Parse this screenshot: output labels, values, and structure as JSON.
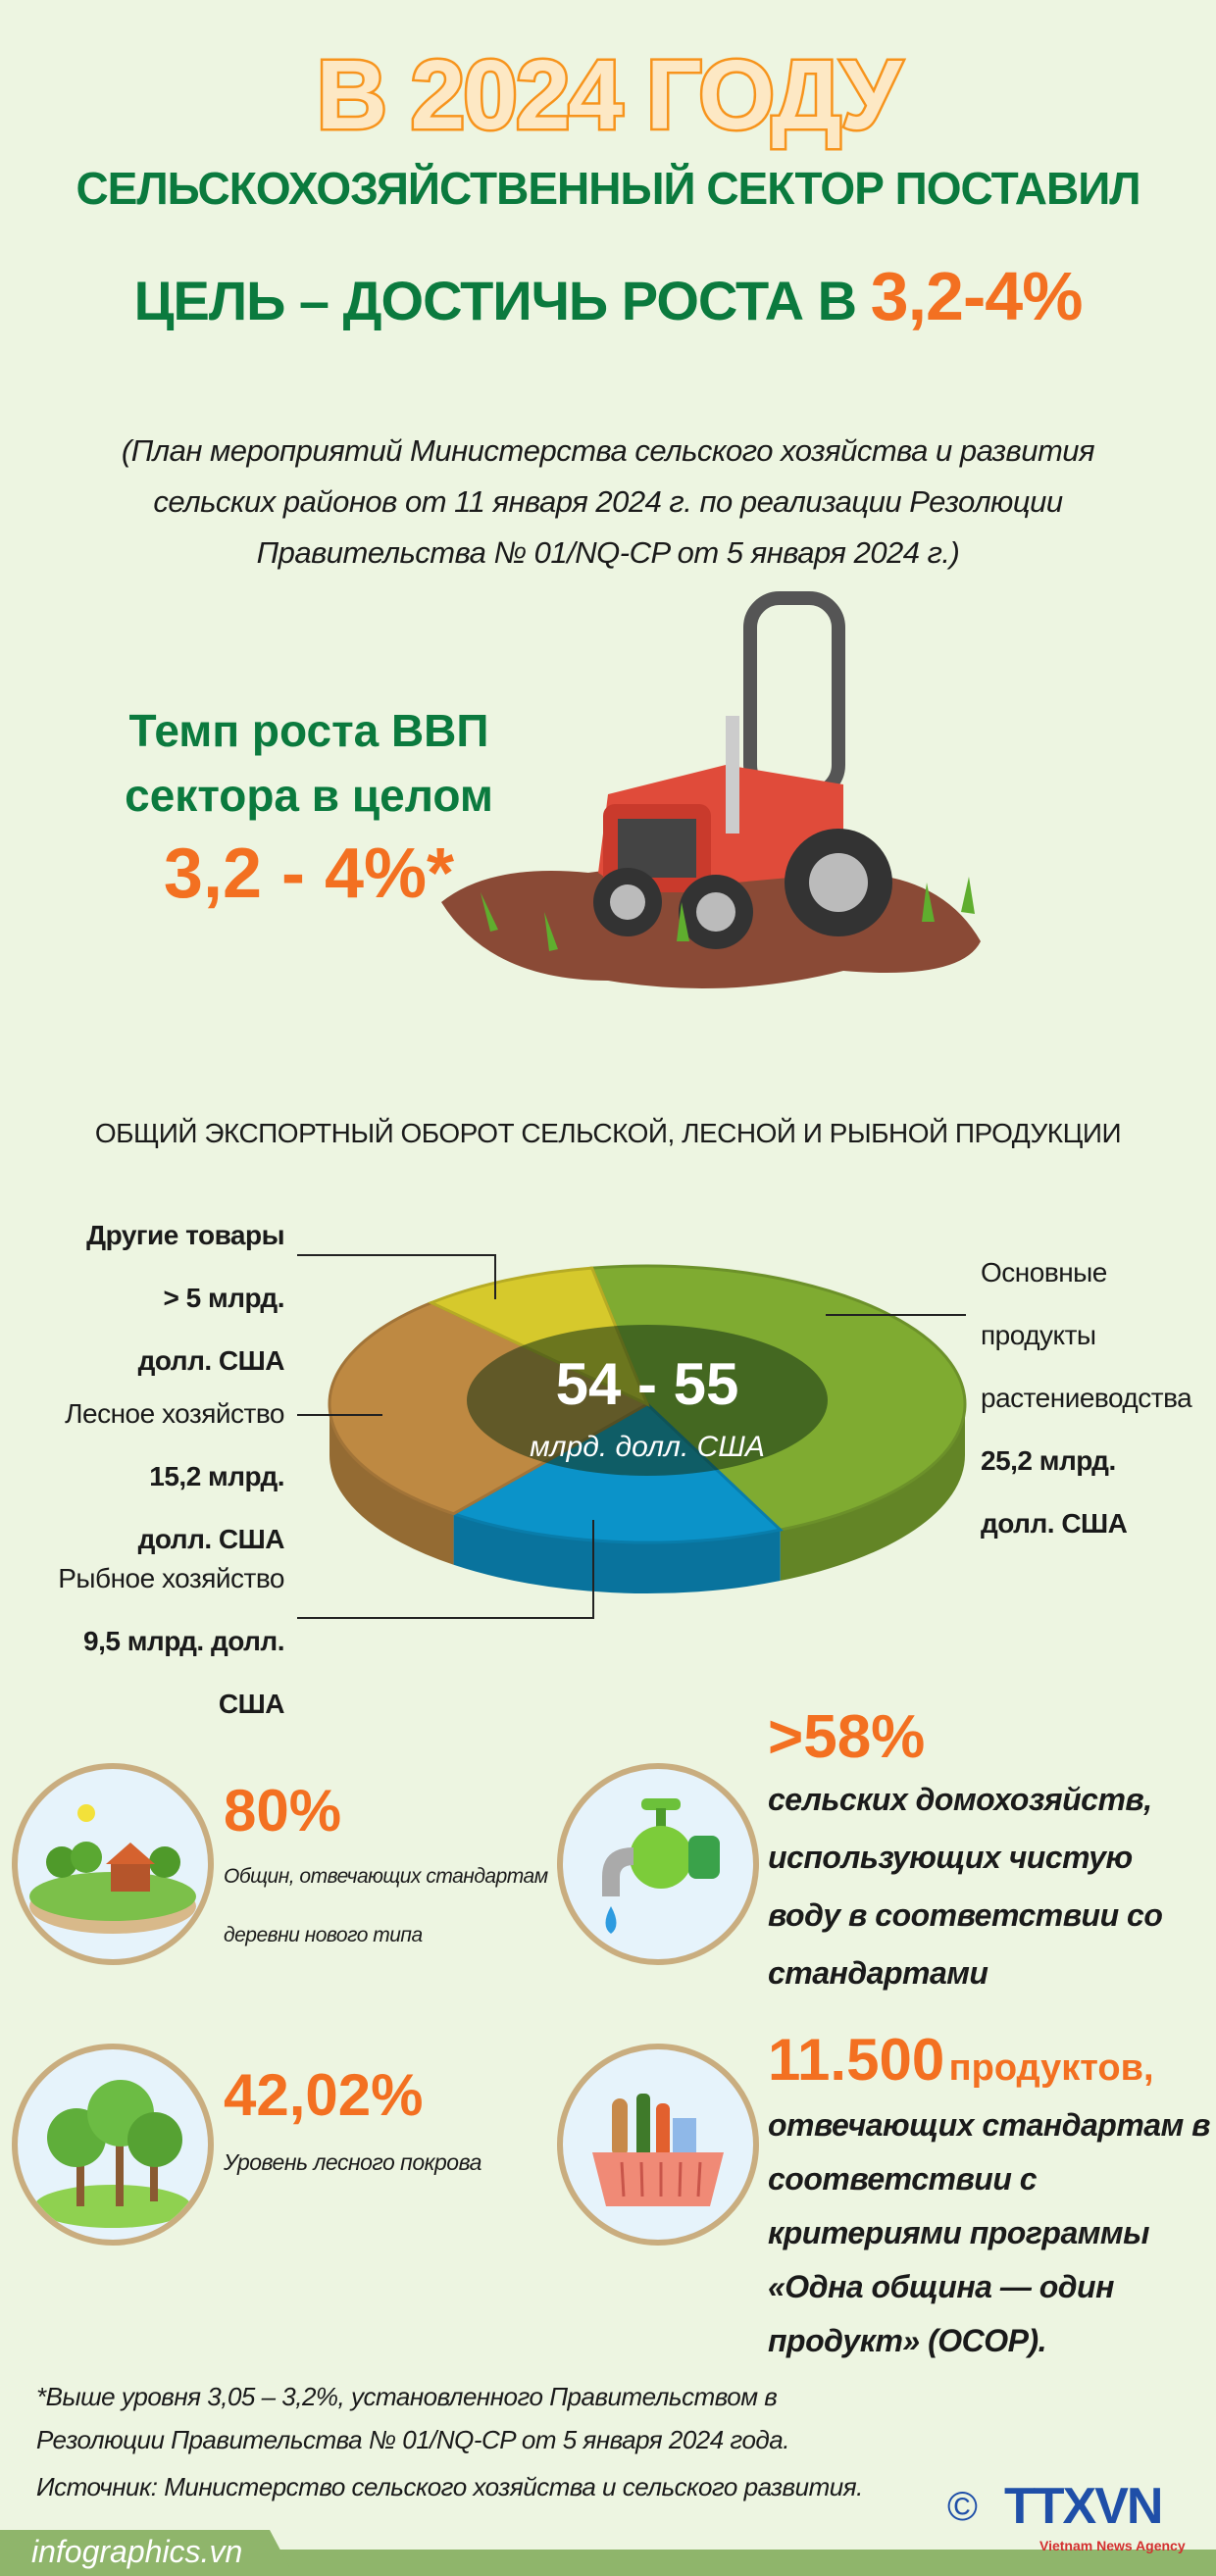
{
  "header": {
    "line1": "В 2024 ГОДУ",
    "line2": "СЕЛЬСКОХОЗЯЙСТВЕННЫЙ СЕКТОР ПОСТАВИЛ",
    "line3_text": "ЦЕЛЬ – ДОСТИЧЬ РОСТА В",
    "line3_highlight": "3,2-4%",
    "subtitle": [
      "(План мероприятий Министерства сельского хозяйства и развития",
      "сельских районов  от 11 января 2024 г. по реализации Резолюции",
      "Правительства № 01/NQ-CP от 5 января 2024 г.)"
    ]
  },
  "gdp": {
    "label_lines": [
      "Темп роста ВВП",
      "сектора в целом"
    ],
    "value": "3,2 - 4%*"
  },
  "chart_data": {
    "type": "pie",
    "title": "ОБЩИЙ ЭКСПОРТНЫЙ ОБОРОТ СЕЛЬСКОЙ, ЛЕСНОЙ И РЫБНОЙ ПРОДУКЦИИ",
    "center_value": "54 - 55",
    "center_unit": "млрд. долл. США",
    "slices": [
      {
        "name": "Основные продукты растениеводства",
        "value": 25.2,
        "color": "#7fab31",
        "label_lines": [
          "Основные",
          "продукты",
          "растениеводства"
        ],
        "value_lines": [
          "25,2 млрд.",
          "долл. США"
        ]
      },
      {
        "name": "Рыбное хозяйство",
        "value": 9.5,
        "color": "#0b93c9",
        "label_lines": [
          "Рыбное хозяйство"
        ],
        "value_lines": [
          "9,5 млрд. долл.",
          "США"
        ]
      },
      {
        "name": "Лесное хозяйство",
        "value": 15.2,
        "color": "#be8942",
        "label_lines": [
          "Лесное хозяйство"
        ],
        "value_lines": [
          "15,2 млрд.",
          "долл. США"
        ]
      },
      {
        "name": "Другие товары",
        "value": 5,
        "color": "#d6c92c",
        "label_lines": [
          "Другие товары"
        ],
        "value_lines": [
          "> 5 млрд.",
          "долл. США"
        ]
      }
    ]
  },
  "stats": {
    "villages": {
      "value": "80%",
      "caption_lines": [
        "Общин, отвечающих стандартам",
        "деревни нового типа"
      ]
    },
    "water": {
      "value": ">58%",
      "lines": [
        "сельских домохозяйств,",
        "использующих чистую",
        "воду в соответствии со",
        "стандартами"
      ]
    },
    "forest": {
      "value": "42,02%",
      "caption": "Уровень лесного покрова"
    },
    "ocop": {
      "value": "11.500",
      "unit": "продуктов,",
      "lines": [
        "отвечающих стандартам в",
        "соответствии с",
        "критериями программы",
        "«Одна община — один",
        "продукт» (OCOP)."
      ]
    }
  },
  "footnote": [
    "*Выше уровня 3,05 – 3,2%, установленного Правительством в",
    "Резолюции Правительства № 01/NQ-CP от 5 января 2024 года."
  ],
  "source": "Источник: Министерство сельского хозяйства и сельского развития.",
  "footer": {
    "site": "infographics.vn",
    "copyright": "©",
    "logo": "TTXVN",
    "logo_sub": "Vietnam News Agency"
  },
  "colors": {
    "background": "#edf5e1",
    "green": "#0b7a3e",
    "orange": "#f37021",
    "footer_bar": "#8fb56b"
  }
}
